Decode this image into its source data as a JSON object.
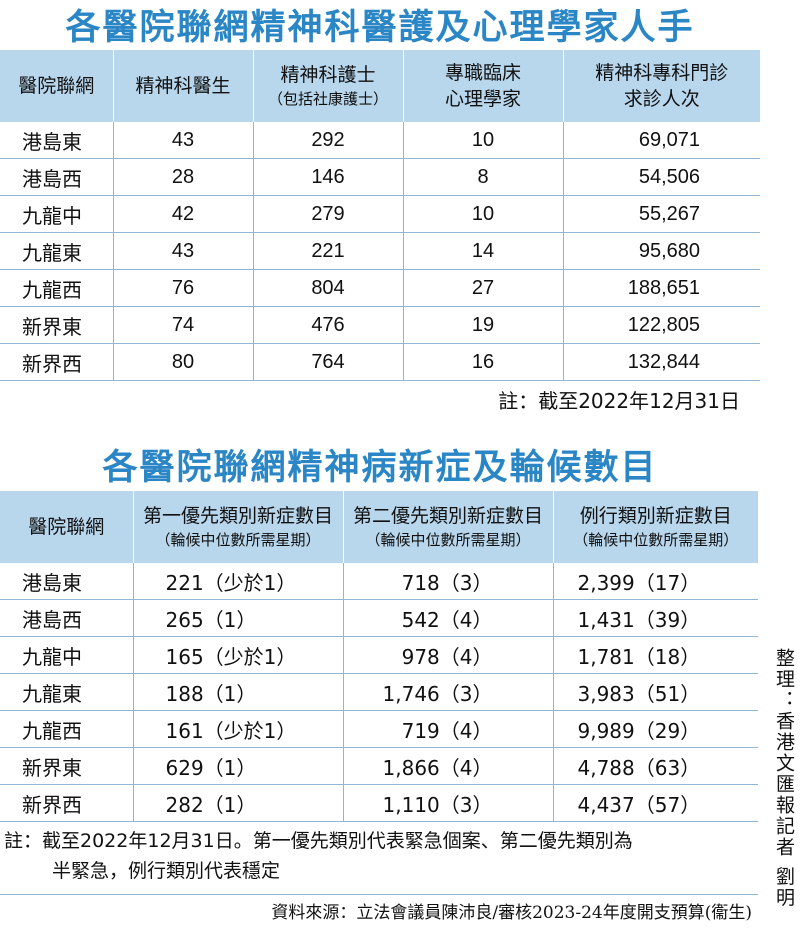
{
  "table1": {
    "title": "各醫院聯網精神科醫護及心理學家人手",
    "headers": [
      {
        "main": "醫院聯網",
        "sub": ""
      },
      {
        "main": "精神科醫生",
        "sub": ""
      },
      {
        "main": "精神科護士",
        "sub": "（包括社康護士）"
      },
      {
        "main": "專職臨床",
        "sub": "心理學家"
      },
      {
        "main": "精神科專科門診",
        "sub": "求診人次"
      }
    ],
    "rows": [
      [
        "港島東",
        "43",
        "292",
        "10",
        "69,071"
      ],
      [
        "港島西",
        "28",
        "146",
        "8",
        "54,506"
      ],
      [
        "九龍中",
        "42",
        "279",
        "10",
        "55,267"
      ],
      [
        "九龍東",
        "43",
        "221",
        "14",
        "95,680"
      ],
      [
        "九龍西",
        "76",
        "804",
        "27",
        "188,651"
      ],
      [
        "新界東",
        "74",
        "476",
        "19",
        "122,805"
      ],
      [
        "新界西",
        "80",
        "764",
        "16",
        "132,844"
      ]
    ],
    "note": "註：截至2022年12月31日"
  },
  "table2": {
    "title": "各醫院聯網精神病新症及輪候數目",
    "headers": [
      {
        "main": "醫院聯網",
        "sub": ""
      },
      {
        "main": "第一優先類別新症數目",
        "sub": "（輪候中位數所需星期）"
      },
      {
        "main": "第二優先類別新症數目",
        "sub": "（輪候中位數所需星期）"
      },
      {
        "main": "例行類別新症數目",
        "sub": "（輪候中位數所需星期）"
      }
    ],
    "rows": [
      [
        "港島東",
        "221（少於1）",
        "718（3）",
        "2,399（17）"
      ],
      [
        "港島西",
        "265（1）",
        "542（4）",
        "1,431（39）"
      ],
      [
        "九龍中",
        "165（少於1）",
        "978（4）",
        "1,781（18）"
      ],
      [
        "九龍東",
        "188（1）",
        "1,746（3）",
        "3,983（51）"
      ],
      [
        "九龍西",
        "161（少於1）",
        "719（4）",
        "9,989（29）"
      ],
      [
        "新界東",
        "629（1）",
        "1,866（4）",
        "4,788（63）"
      ],
      [
        "新界西",
        "282（1）",
        "1,110（3）",
        "4,437（57）"
      ]
    ],
    "note_line1": "註：截至2022年12月31日。第一優先類別代表緊急個案、第二優先類別為",
    "note_line2": "半緊急，例行類別代表穩定"
  },
  "source": "資料來源：立法會議員陳沛良/審核2023-24年度開支預算(衞生)",
  "credit": "整理：香港文匯報記者 劉明"
}
